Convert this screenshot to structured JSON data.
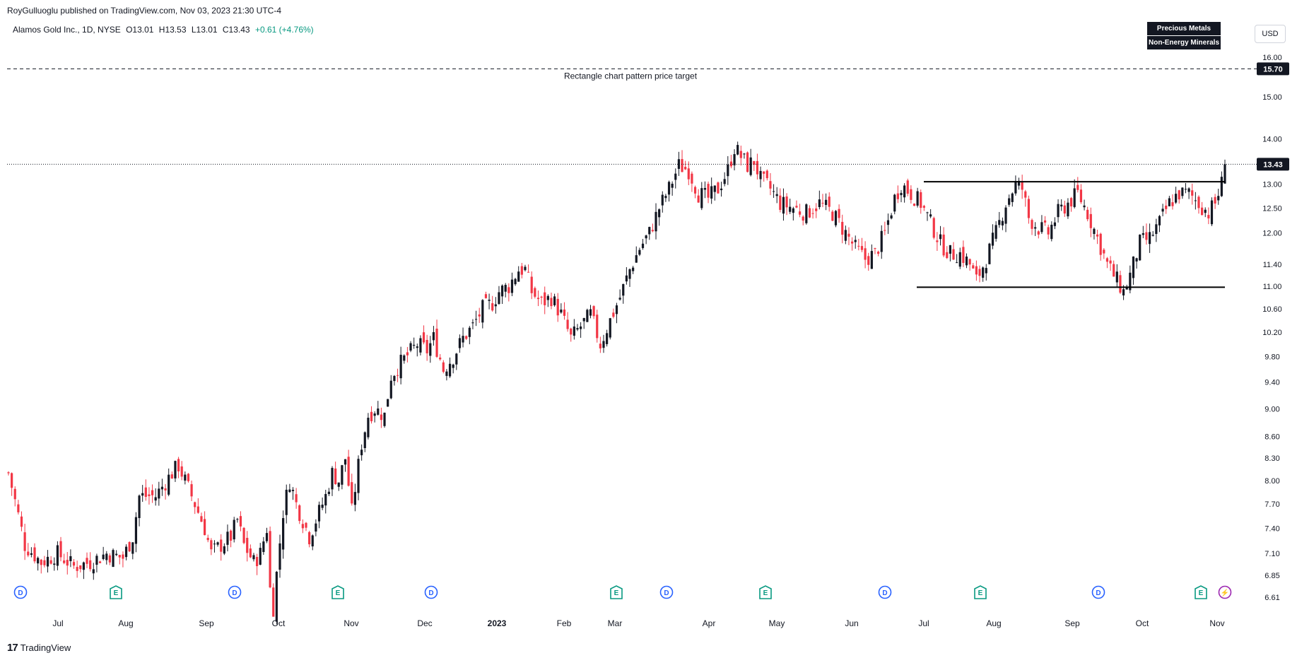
{
  "header": {
    "publisher": "RoyGulluoglu published on TradingView.com, Nov 03, 2023 21:30 UTC-4"
  },
  "legend": {
    "symbol": "Alamos Gold Inc., 1D, NYSE",
    "open": "O13.01",
    "high": "H13.53",
    "low": "L13.01",
    "close": "C13.43",
    "change": "+0.61 (+4.76%)",
    "change_color": "#089981"
  },
  "badges": [
    "Precious Metals",
    "Non-Energy Minerals"
  ],
  "currency": "USD",
  "footer": {
    "brand": "TradingView"
  },
  "chart_data": {
    "type": "candlestick",
    "colors": {
      "up": "#131722",
      "down": "#f23645"
    },
    "y_axis": {
      "scale": "log",
      "range": [
        6.5,
        16.4
      ],
      "ticks": [
        "16.00",
        "15.00",
        "14.00",
        "13.00",
        "12.50",
        "12.00",
        "11.40",
        "11.00",
        "10.60",
        "10.20",
        "9.80",
        "9.40",
        "9.00",
        "8.60",
        "8.30",
        "8.00",
        "7.70",
        "7.40",
        "7.10",
        "6.85",
        "6.61"
      ]
    },
    "x_axis": {
      "labels": [
        "Jul",
        "Aug",
        "Sep",
        "Oct",
        "Nov",
        "Dec",
        "2023",
        "Feb",
        "Mar",
        "Apr",
        "May",
        "Jun",
        "Jul",
        "Aug",
        "Sep",
        "Oct",
        "Nov"
      ]
    },
    "price_labels": {
      "target": "15.70",
      "last": "13.43"
    },
    "annotation": "Rectangle chart pattern price target",
    "rectangle_pattern": {
      "top": 13.05,
      "bottom": 10.98,
      "start": "Jul",
      "end": "Nov"
    },
    "series_close": [
      [
        0,
        8.1
      ],
      [
        5,
        7.2
      ],
      [
        10,
        7.0
      ],
      [
        15,
        7.1
      ],
      [
        20,
        6.95
      ],
      [
        25,
        7.0
      ],
      [
        30,
        7.1
      ],
      [
        35,
        7.05
      ],
      [
        38,
        7.3
      ],
      [
        40,
        7.8
      ],
      [
        45,
        7.8
      ],
      [
        50,
        8.1
      ],
      [
        52,
        8.2
      ],
      [
        55,
        7.9
      ],
      [
        58,
        7.6
      ],
      [
        60,
        7.4
      ],
      [
        62,
        7.1
      ],
      [
        65,
        7.2
      ],
      [
        68,
        7.3
      ],
      [
        70,
        7.5
      ],
      [
        72,
        7.2
      ],
      [
        75,
        7.0
      ],
      [
        77,
        7.1
      ],
      [
        79,
        7.4
      ],
      [
        80,
        6.7
      ],
      [
        81,
        6.5
      ],
      [
        84,
        7.6
      ],
      [
        86,
        8.0
      ],
      [
        88,
        7.7
      ],
      [
        90,
        7.5
      ],
      [
        92,
        7.3
      ],
      [
        95,
        7.6
      ],
      [
        97,
        7.8
      ],
      [
        99,
        8.1
      ],
      [
        101,
        8.0
      ],
      [
        103,
        8.3
      ],
      [
        105,
        7.6
      ],
      [
        108,
        8.5
      ],
      [
        110,
        8.9
      ],
      [
        112,
        9.0
      ],
      [
        115,
        8.9
      ],
      [
        117,
        9.5
      ],
      [
        120,
        9.7
      ],
      [
        125,
        10.0
      ],
      [
        128,
        9.9
      ],
      [
        130,
        10.1
      ],
      [
        133,
        9.6
      ],
      [
        136,
        9.8
      ],
      [
        139,
        10.1
      ],
      [
        142,
        10.3
      ],
      [
        145,
        10.6
      ],
      [
        148,
        10.7
      ],
      [
        150,
        10.9
      ],
      [
        153,
        11.0
      ],
      [
        156,
        11.3
      ],
      [
        158,
        11.3
      ],
      [
        160,
        10.9
      ],
      [
        163,
        10.7
      ],
      [
        166,
        10.8
      ],
      [
        169,
        10.5
      ],
      [
        172,
        10.1
      ],
      [
        175,
        10.3
      ],
      [
        178,
        10.5
      ],
      [
        181,
        10.0
      ],
      [
        184,
        10.4
      ],
      [
        187,
        10.8
      ],
      [
        190,
        11.3
      ],
      [
        193,
        11.7
      ],
      [
        196,
        12.0
      ],
      [
        199,
        12.5
      ],
      [
        202,
        12.9
      ],
      [
        205,
        13.4
      ],
      [
        208,
        13.3
      ],
      [
        211,
        12.8
      ],
      [
        214,
        12.7
      ],
      [
        217,
        12.9
      ],
      [
        220,
        13.3
      ],
      [
        222,
        13.8
      ],
      [
        224,
        13.6
      ],
      [
        226,
        13.4
      ],
      [
        228,
        13.5
      ],
      [
        230,
        13.1
      ],
      [
        233,
        12.9
      ],
      [
        236,
        12.6
      ],
      [
        240,
        12.5
      ],
      [
        244,
        12.4
      ],
      [
        248,
        12.6
      ],
      [
        252,
        12.4
      ],
      [
        256,
        12.0
      ],
      [
        259,
        11.7
      ],
      [
        262,
        11.5
      ],
      [
        265,
        11.6
      ],
      [
        268,
        12.0
      ],
      [
        271,
        12.7
      ],
      [
        273,
        13.0
      ],
      [
        276,
        12.8
      ],
      [
        279,
        12.6
      ],
      [
        282,
        12.2
      ],
      [
        285,
        11.8
      ],
      [
        288,
        11.6
      ],
      [
        291,
        11.6
      ],
      [
        294,
        11.4
      ],
      [
        296,
        11.1
      ],
      [
        299,
        11.5
      ],
      [
        302,
        12.0
      ],
      [
        305,
        12.6
      ],
      [
        308,
        13.0
      ],
      [
        310,
        12.9
      ],
      [
        312,
        12.3
      ],
      [
        315,
        12.1
      ],
      [
        318,
        12.0
      ],
      [
        321,
        12.4
      ],
      [
        324,
        12.6
      ],
      [
        327,
        12.8
      ],
      [
        330,
        12.4
      ],
      [
        333,
        11.9
      ],
      [
        336,
        11.4
      ],
      [
        339,
        11.1
      ],
      [
        341,
        10.9
      ],
      [
        343,
        11.2
      ],
      [
        346,
        11.8
      ],
      [
        349,
        11.9
      ],
      [
        352,
        12.2
      ],
      [
        355,
        12.6
      ],
      [
        358,
        12.8
      ],
      [
        361,
        12.8
      ],
      [
        364,
        12.6
      ],
      [
        367,
        12.4
      ],
      [
        369,
        12.6
      ],
      [
        371,
        13.01
      ],
      [
        372,
        13.43
      ]
    ]
  }
}
